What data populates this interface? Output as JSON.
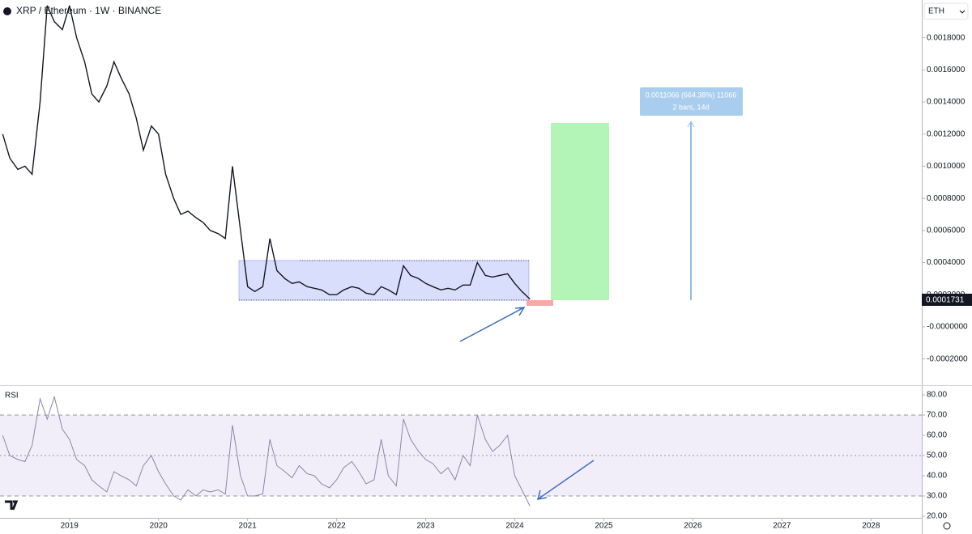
{
  "chart_data": [
    {
      "type": "line",
      "title": "XRP / Ethereum · 1W · BINANCE",
      "currency": "ETH",
      "color": "#131722",
      "xlim": [
        2018.22,
        2028.57
      ],
      "ylim": [
        -0.000358,
        0.002035
      ],
      "yticks": [
        {
          "value": 0.0018,
          "label": "0.0018000"
        },
        {
          "value": 0.0016,
          "label": "0.0016000"
        },
        {
          "value": 0.0014,
          "label": "0.0014000"
        },
        {
          "value": 0.0012,
          "label": "0.0012000"
        },
        {
          "value": 0.001,
          "label": "0.0010000"
        },
        {
          "value": 0.0008,
          "label": "0.0008000"
        },
        {
          "value": 0.0006,
          "label": "0.0006000"
        },
        {
          "value": 0.0004,
          "label": "0.0004000"
        },
        {
          "value": 0.0002,
          "label": "0.0002000"
        },
        {
          "value": 0,
          "label": "-0.0000000"
        },
        {
          "value": -0.0002,
          "label": "-0.0002000"
        }
      ],
      "last_price": 0.0001731,
      "annotations": [
        "0.0011066 (664.38%) 11066",
        "2 bars, 14d"
      ],
      "x": [
        2018.25,
        2018.33,
        2018.42,
        2018.5,
        2018.58,
        2018.67,
        2018.75,
        2018.83,
        2018.92,
        2019,
        2019.08,
        2019.17,
        2019.25,
        2019.33,
        2019.42,
        2019.5,
        2019.58,
        2019.67,
        2019.75,
        2019.83,
        2019.92,
        2020,
        2020.08,
        2020.17,
        2020.25,
        2020.33,
        2020.42,
        2020.5,
        2020.58,
        2020.67,
        2020.75,
        2020.83,
        2020.92,
        2021,
        2021.08,
        2021.17,
        2021.25,
        2021.33,
        2021.42,
        2021.5,
        2021.58,
        2021.67,
        2021.75,
        2021.83,
        2021.92,
        2022,
        2022.08,
        2022.17,
        2022.25,
        2022.33,
        2022.42,
        2022.5,
        2022.58,
        2022.67,
        2022.75,
        2022.83,
        2022.92,
        2023,
        2023.08,
        2023.17,
        2023.25,
        2023.33,
        2023.42,
        2023.5,
        2023.58,
        2023.67,
        2023.75,
        2023.83,
        2023.92,
        2024,
        2024.08,
        2024.17
      ],
      "values": [
        0.0012,
        0.00105,
        0.00098,
        0.001,
        0.00095,
        0.0014,
        0.002,
        0.0019,
        0.00185,
        0.002,
        0.0018,
        0.00165,
        0.00145,
        0.0014,
        0.0015,
        0.00165,
        0.00155,
        0.00145,
        0.0013,
        0.0011,
        0.00125,
        0.0012,
        0.00095,
        0.0008,
        0.0007,
        0.00072,
        0.00068,
        0.00065,
        0.0006,
        0.00058,
        0.00055,
        0.001,
        0.0006,
        0.00025,
        0.00022,
        0.00025,
        0.00055,
        0.00035,
        0.0003,
        0.00027,
        0.00028,
        0.00025,
        0.00024,
        0.00023,
        0.0002,
        0.0002,
        0.00023,
        0.00025,
        0.00024,
        0.00021,
        0.0002,
        0.00025,
        0.00023,
        0.0002,
        0.00038,
        0.00032,
        0.0003,
        0.00027,
        0.00025,
        0.00023,
        0.00024,
        0.00023,
        0.00026,
        0.00026,
        0.0004,
        0.00032,
        0.00031,
        0.00032,
        0.00033,
        0.00027,
        0.00022,
        0.0001731
      ]
    },
    {
      "type": "line",
      "title": "RSI",
      "color": "#8c86a8",
      "xlim": [
        2018.22,
        2028.57
      ],
      "ylim": [
        19.2,
        84
      ],
      "xticks": [
        2019,
        2020,
        2021,
        2022,
        2023,
        2024,
        2025,
        2026,
        2027,
        2028
      ],
      "yticks": [
        {
          "value": 80,
          "label": "80.00"
        },
        {
          "value": 70,
          "label": "70.00"
        },
        {
          "value": 60,
          "label": "60.00"
        },
        {
          "value": 50,
          "label": "50.00"
        },
        {
          "value": 40,
          "label": "40.00"
        },
        {
          "value": 30,
          "label": "30.00"
        },
        {
          "value": 20,
          "label": "20.00"
        }
      ],
      "levels": [
        30,
        50,
        70
      ],
      "x": [
        2018.25,
        2018.33,
        2018.42,
        2018.5,
        2018.58,
        2018.67,
        2018.75,
        2018.83,
        2018.92,
        2019,
        2019.08,
        2019.17,
        2019.25,
        2019.33,
        2019.42,
        2019.5,
        2019.58,
        2019.67,
        2019.75,
        2019.83,
        2019.92,
        2020,
        2020.08,
        2020.17,
        2020.25,
        2020.33,
        2020.42,
        2020.5,
        2020.58,
        2020.67,
        2020.75,
        2020.83,
        2020.92,
        2021,
        2021.08,
        2021.17,
        2021.25,
        2021.33,
        2021.42,
        2021.5,
        2021.58,
        2021.67,
        2021.75,
        2021.83,
        2021.92,
        2022,
        2022.08,
        2022.17,
        2022.25,
        2022.33,
        2022.42,
        2022.5,
        2022.58,
        2022.67,
        2022.75,
        2022.83,
        2022.92,
        2023,
        2023.08,
        2023.17,
        2023.25,
        2023.33,
        2023.42,
        2023.5,
        2023.58,
        2023.67,
        2023.75,
        2023.83,
        2023.92,
        2024,
        2024.08,
        2024.17
      ],
      "values": [
        60,
        50,
        48,
        47,
        55,
        78,
        68,
        79,
        63,
        58,
        48,
        45,
        38,
        35,
        32,
        42,
        40,
        38,
        35,
        45,
        50,
        42,
        36,
        30,
        28,
        33,
        30,
        33,
        32,
        33,
        31,
        65,
        40,
        30,
        30,
        31,
        58,
        45,
        42,
        39,
        45,
        41,
        40,
        36,
        34,
        38,
        44,
        47,
        42,
        36,
        38,
        58,
        40,
        35,
        68,
        58,
        52,
        48,
        46,
        41,
        44,
        38,
        50,
        45,
        70,
        58,
        52,
        55,
        60,
        40,
        33,
        25
      ]
    }
  ]
}
